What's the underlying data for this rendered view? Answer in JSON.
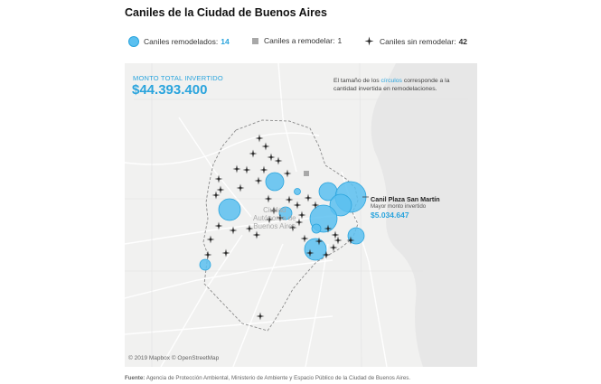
{
  "title": "Caniles de la Ciudad de Buenos Aires",
  "legend": {
    "remodelados": {
      "label": "Caniles remodelados:",
      "count": "14",
      "icon": "blue-circle-icon",
      "color": "#2aa4dd"
    },
    "a_remodelar": {
      "label": "Caniles a remodelar:",
      "count": "1",
      "icon": "gray-square-icon",
      "color": "#a8a8a8"
    },
    "sin_remodelar": {
      "label": "Caniles sin remodelar:",
      "count": "42",
      "icon": "star-cross-icon",
      "color": "#222222"
    }
  },
  "map": {
    "total_label": "MONTO TOTAL INVERTIDO",
    "total_value": "$44.393.400",
    "note_prefix": "El tamaño de los ",
    "note_highlight": "círculos",
    "note_suffix": " corresponde a la cantidad invertida en remodelaciones.",
    "callout": {
      "name": "Canil Plaza San Martín",
      "subtitle": "Mayor monto invertido",
      "value": "$5.034.647"
    },
    "city_label_lines": [
      "Ciudad",
      "Autónoma de",
      "Buenos Aires"
    ],
    "attribution": "© 2019 Mapbox  © OpenStreetMap"
  },
  "source": {
    "label": "Fuente:",
    "text": "Agencia de Protección Ambiental, Ministerio de Ambiente y Espacio Público de la Ciudad de Buenos Aires."
  }
}
